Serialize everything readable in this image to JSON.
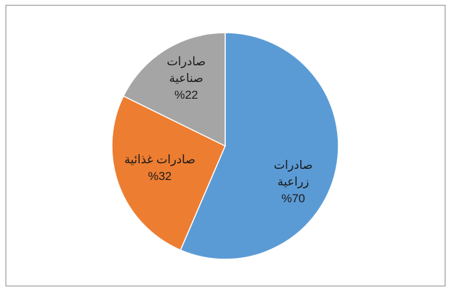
{
  "chart_data": {
    "type": "pie",
    "categories": [
      "صادرات زراعية",
      "صادرات غذائية",
      "صادرات صناعية"
    ],
    "values": [
      70,
      32,
      22
    ],
    "value_labels": [
      "%70",
      "%32",
      "%22"
    ],
    "colors": [
      "#5b9bd5",
      "#ed7d31",
      "#a5a5a5"
    ]
  }
}
